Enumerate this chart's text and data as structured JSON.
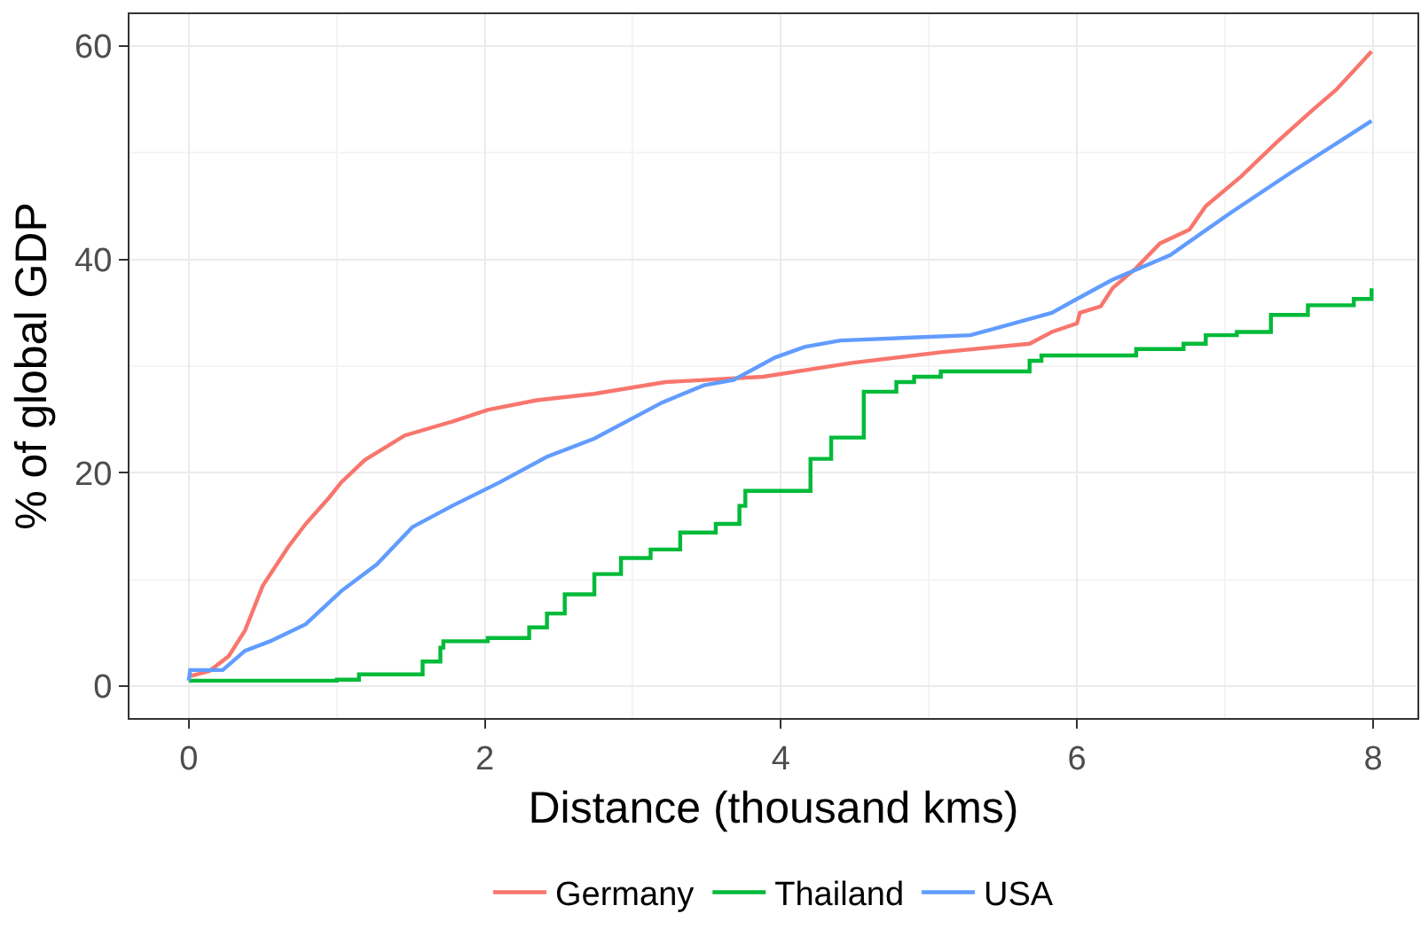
{
  "chart_data": {
    "type": "step",
    "xlabel": "Distance (thousand kms)",
    "ylabel": "% of global GDP",
    "xlim": [
      -0.4,
      8.3
    ],
    "ylim": [
      -3,
      63
    ],
    "xticks": [
      0,
      2,
      4,
      6,
      8
    ],
    "yticks": [
      0,
      20,
      40,
      60
    ],
    "grid": true,
    "legend": "bottom",
    "line_style": "solid",
    "marker": "none",
    "series": [
      {
        "name": "Germany",
        "type": "line",
        "color": "#f8766d",
        "x": [
          0,
          0.14,
          0.27,
          0.38,
          0.5,
          0.67,
          0.79,
          0.95,
          1.03,
          1.19,
          1.46,
          1.78,
          2.02,
          2.35,
          2.74,
          3.22,
          3.88,
          4.48,
          5.08,
          5.68,
          5.83,
          6.0,
          6.02,
          6.16,
          6.24,
          6.4,
          6.56,
          6.76,
          6.87,
          7.11,
          7.35,
          7.59,
          7.75,
          7.99
        ],
        "values": [
          0.9,
          1.4,
          2.8,
          5.2,
          9.4,
          13.0,
          15.2,
          17.7,
          19.1,
          21.2,
          23.5,
          24.8,
          25.9,
          26.8,
          27.4,
          28.5,
          29.0,
          30.3,
          31.3,
          32.1,
          33.2,
          34.0,
          35.0,
          35.6,
          37.3,
          39.2,
          41.5,
          42.8,
          45.0,
          47.8,
          51.0,
          54.0,
          55.9,
          59.5
        ]
      },
      {
        "name": "Thailand",
        "color": "#00ba38",
        "x": [
          0,
          1.0,
          1.15,
          1.58,
          1.7,
          1.72,
          2.02,
          2.3,
          2.42,
          2.54,
          2.74,
          2.92,
          3.12,
          3.32,
          3.56,
          3.72,
          3.76,
          4.2,
          4.34,
          4.56,
          4.78,
          4.9,
          5.08,
          5.68,
          5.76,
          6.4,
          6.72,
          6.87,
          7.08,
          7.31,
          7.56,
          7.87,
          7.99
        ],
        "values": [
          0.5,
          0.6,
          1.1,
          2.3,
          3.6,
          4.2,
          4.5,
          5.5,
          6.8,
          8.6,
          10.5,
          12.0,
          12.8,
          14.4,
          15.2,
          16.9,
          18.3,
          21.3,
          23.3,
          27.6,
          28.5,
          29.0,
          29.5,
          30.5,
          31.0,
          31.6,
          32.1,
          32.9,
          33.2,
          34.8,
          35.7,
          36.3,
          37.3
        ]
      },
      {
        "name": "USA",
        "type": "line",
        "color": "#619cff",
        "x": [
          0,
          0.01,
          0.23,
          0.38,
          0.55,
          0.79,
          1.03,
          1.27,
          1.51,
          1.78,
          2.1,
          2.42,
          2.74,
          3.2,
          3.48,
          3.68,
          3.96,
          4.16,
          4.4,
          5.28,
          5.44,
          5.83,
          6.0,
          6.24,
          6.63,
          7.03,
          7.44,
          7.99
        ],
        "values": [
          0.5,
          1.5,
          1.5,
          3.3,
          4.2,
          5.8,
          8.9,
          11.4,
          14.9,
          16.9,
          19.1,
          21.5,
          23.2,
          26.6,
          28.2,
          28.7,
          30.8,
          31.8,
          32.4,
          32.9,
          33.5,
          35.0,
          36.3,
          38.1,
          40.4,
          44.3,
          48.1,
          53.0
        ]
      }
    ]
  }
}
